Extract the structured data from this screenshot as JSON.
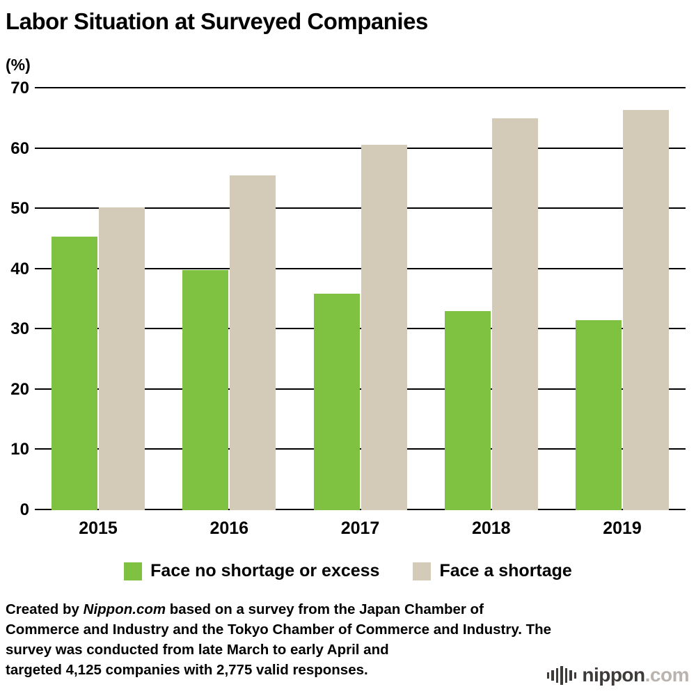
{
  "title": "Labor Situation at Surveyed Companies",
  "chart_data": {
    "type": "bar",
    "title": "Labor Situation at Surveyed Companies",
    "unit_label": "(%)",
    "categories": [
      "2015",
      "2016",
      "2017",
      "2018",
      "2019"
    ],
    "series": [
      {
        "name": "Face no shortage or excess",
        "color": "#7fc241",
        "values": [
          45.4,
          39.9,
          35.9,
          33.0,
          31.5
        ]
      },
      {
        "name": "Face a shortage",
        "color": "#d3cbb8",
        "values": [
          50.2,
          55.6,
          60.6,
          65.0,
          66.4
        ]
      }
    ],
    "ylim": [
      0,
      70
    ],
    "ytick_interval": 10,
    "yticks": [
      0,
      10,
      20,
      30,
      40,
      50,
      60,
      70
    ],
    "grid": true,
    "legend_position": "bottom"
  },
  "footer": {
    "lines": [
      {
        "prefix": "Created by ",
        "italic": "Nippon.com",
        "text": " based on a survey from the Japan Chamber of"
      },
      {
        "text": "Commerce and Industry and the Tokyo Chamber of Commerce and Industry. The"
      },
      {
        "text": "survey was conducted from late March to early April and"
      },
      {
        "text": "targeted 4,125 companies with 2,775 valid responses."
      }
    ]
  },
  "branding": {
    "logo_text": "nippon",
    "logo_suffix": ".com"
  }
}
